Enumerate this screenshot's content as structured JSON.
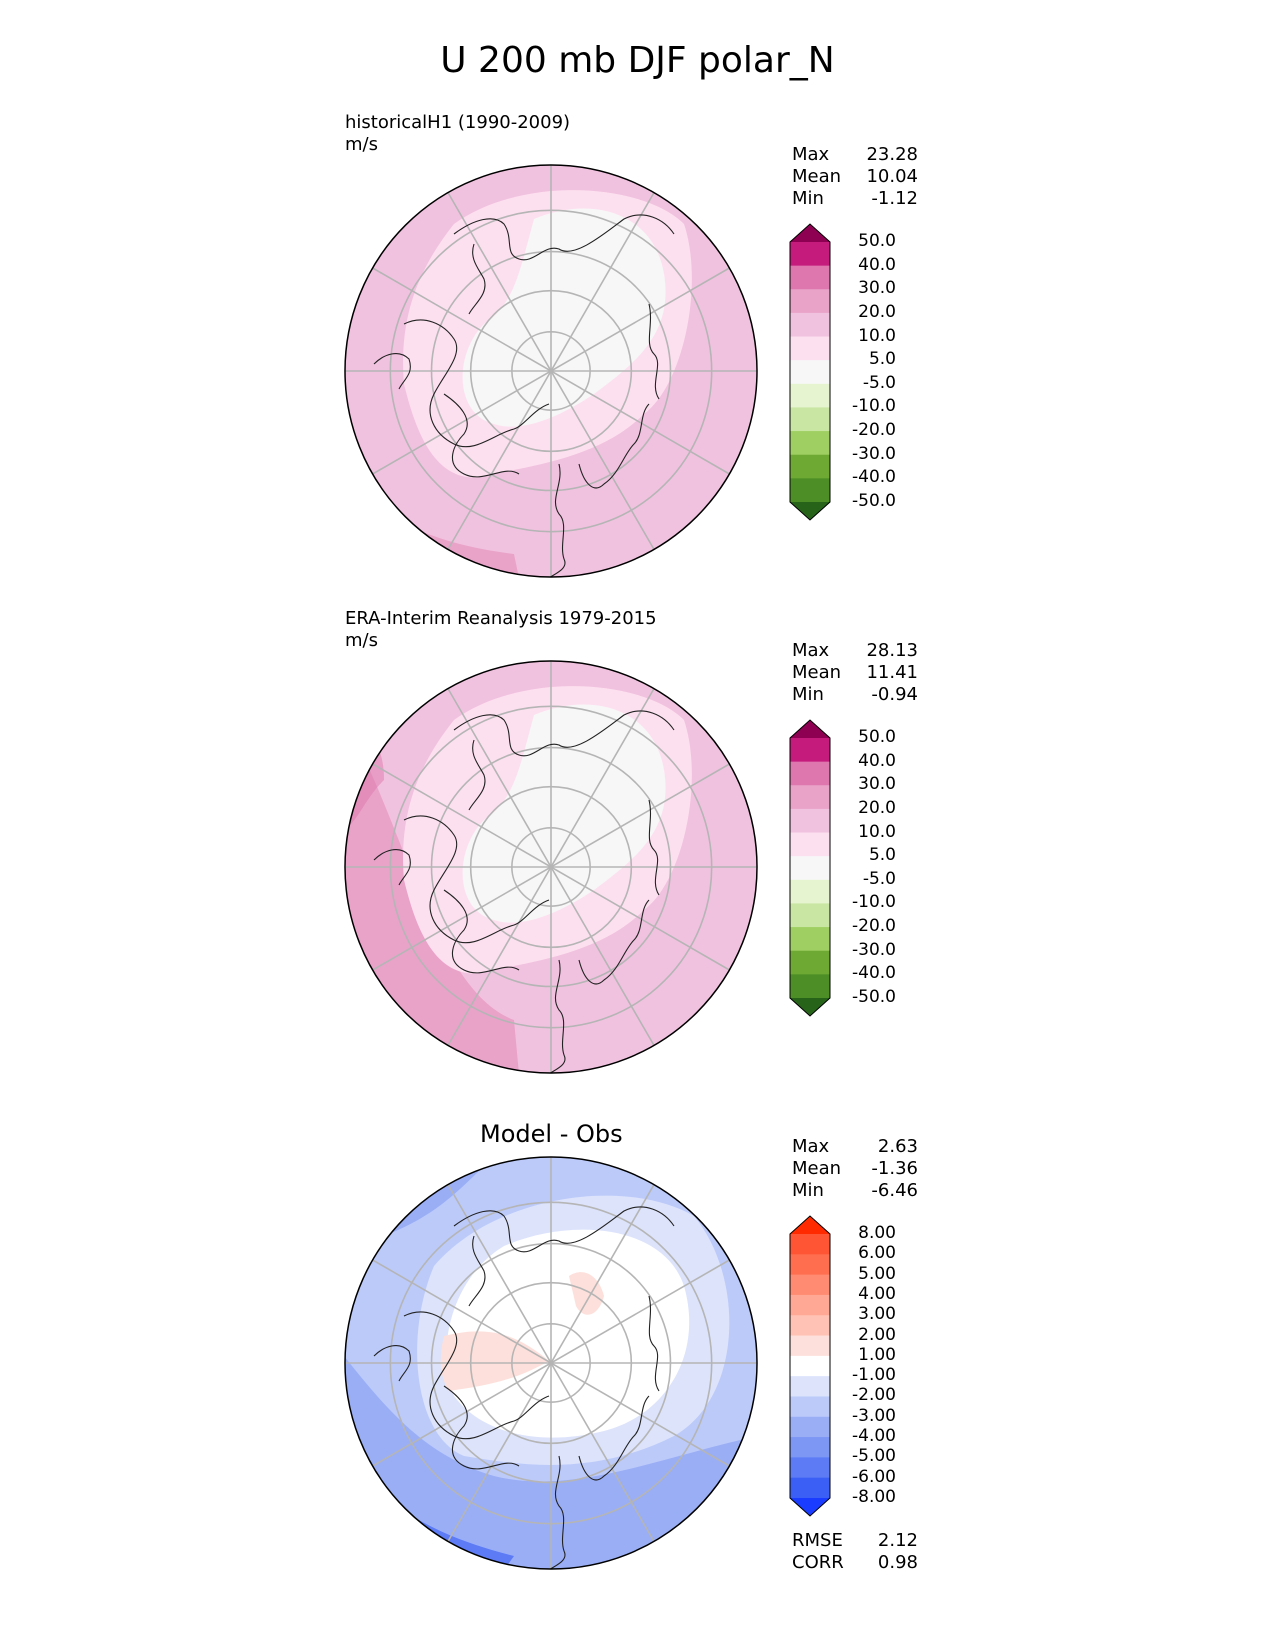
{
  "title": "U 200 mb DJF polar_N",
  "chart_data": [
    {
      "type": "heatmap",
      "projection": "north polar stereographic",
      "title": "historicalH1 (1990-2009)",
      "units": "m/s",
      "stats": [
        {
          "label": "Max",
          "value": "23.28"
        },
        {
          "label": "Mean",
          "value": "10.04"
        },
        {
          "label": "Min",
          "value": "-1.12"
        }
      ],
      "colorbar": {
        "levels": [
          "50.0",
          "40.0",
          "30.0",
          "20.0",
          "10.0",
          "5.0",
          "-5.0",
          "-10.0",
          "-20.0",
          "-30.0",
          "-40.0",
          "-50.0"
        ],
        "colors": [
          "#8e0152",
          "#c51b7d",
          "#de77ae",
          "#e9a3c9",
          "#f1c2df",
          "#fde0ef",
          "#f7f7f7",
          "#e6f5d0",
          "#c9e6a2",
          "#9fcf62",
          "#6ea933",
          "#4d8f26",
          "#27641a"
        ]
      },
      "field_colors": {
        "low": "#f7f7f7",
        "mid": "#fde0ef",
        "high": "#f1c2df",
        "peak": "#e9a3c9"
      }
    },
    {
      "type": "heatmap",
      "projection": "north polar stereographic",
      "title": "ERA-Interim Reanalysis 1979-2015",
      "units": "m/s",
      "stats": [
        {
          "label": "Max",
          "value": "28.13"
        },
        {
          "label": "Mean",
          "value": "11.41"
        },
        {
          "label": "Min",
          "value": "-0.94"
        }
      ],
      "colorbar": {
        "levels": [
          "50.0",
          "40.0",
          "30.0",
          "20.0",
          "10.0",
          "5.0",
          "-5.0",
          "-10.0",
          "-20.0",
          "-30.0",
          "-40.0",
          "-50.0"
        ],
        "colors": [
          "#8e0152",
          "#c51b7d",
          "#de77ae",
          "#e9a3c9",
          "#f1c2df",
          "#fde0ef",
          "#f7f7f7",
          "#e6f5d0",
          "#c9e6a2",
          "#9fcf62",
          "#6ea933",
          "#4d8f26",
          "#27641a"
        ]
      },
      "field_colors": {
        "low": "#f7f7f7",
        "mid": "#fde0ef",
        "high": "#f1c2df",
        "peak": "#e9a3c9"
      }
    },
    {
      "type": "heatmap",
      "projection": "north polar stereographic",
      "title": "Model - Obs",
      "stats": [
        {
          "label": "Max",
          "value": "2.63"
        },
        {
          "label": "Mean",
          "value": "-1.36"
        },
        {
          "label": "Min",
          "value": "-6.46"
        }
      ],
      "colorbar": {
        "levels": [
          "8.00",
          "6.00",
          "5.00",
          "4.00",
          "3.00",
          "2.00",
          "1.00",
          "-1.00",
          "-2.00",
          "-3.00",
          "-4.00",
          "-5.00",
          "-6.00",
          "-8.00"
        ],
        "colors": [
          "#ff2a00",
          "#ff5535",
          "#ff6e4f",
          "#ff8c72",
          "#ffa895",
          "#ffc2b4",
          "#fde0db",
          "#ffffff",
          "#dce3fb",
          "#bccafa",
          "#9aaef6",
          "#7d97f5",
          "#5c7bf5",
          "#3b5ff5",
          "#1a3cff"
        ]
      },
      "field_colors": {
        "low": "#ffffff",
        "mid": "#dce3fb",
        "high": "#bccafa",
        "peak": "#9aaef6",
        "deep": "#5c7bf5",
        "pos": "#fde0db"
      },
      "summary": [
        {
          "label": "RMSE",
          "value": "2.12"
        },
        {
          "label": "CORR",
          "value": "0.98"
        }
      ]
    }
  ]
}
